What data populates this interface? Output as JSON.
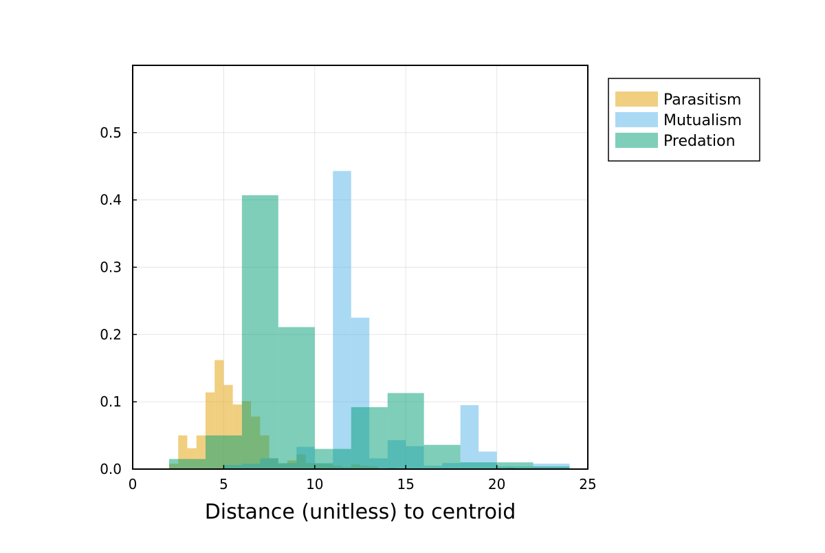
{
  "chart_data": {
    "type": "bar",
    "title": "",
    "xlabel": "Distance (unitless) to centroid",
    "ylabel": "",
    "xlim": [
      0,
      25
    ],
    "ylim": [
      0,
      0.6
    ],
    "xticks": [
      0,
      5,
      10,
      15,
      20,
      25
    ],
    "yticks": [
      0.0,
      0.1,
      0.2,
      0.3,
      0.4,
      0.5
    ],
    "xtick_labels": [
      "0",
      "5",
      "10",
      "15",
      "20",
      "25"
    ],
    "ytick_labels": [
      "0.0",
      "0.1",
      "0.2",
      "0.3",
      "0.4",
      "0.5"
    ],
    "grid": true,
    "legend_position": "outside-top-right",
    "series": [
      {
        "name": "Parasitism",
        "color": "#e6a817",
        "opacity": 0.55,
        "bins": [
          {
            "x0": 1.5,
            "x1": 2.0,
            "y": 0.001
          },
          {
            "x0": 2.0,
            "x1": 2.5,
            "y": 0.008
          },
          {
            "x0": 2.5,
            "x1": 3.0,
            "y": 0.05
          },
          {
            "x0": 3.0,
            "x1": 3.5,
            "y": 0.031
          },
          {
            "x0": 3.5,
            "x1": 4.0,
            "y": 0.05
          },
          {
            "x0": 4.0,
            "x1": 4.5,
            "y": 0.114
          },
          {
            "x0": 4.5,
            "x1": 5.0,
            "y": 0.162
          },
          {
            "x0": 5.0,
            "x1": 5.5,
            "y": 0.125
          },
          {
            "x0": 5.5,
            "x1": 6.0,
            "y": 0.096
          },
          {
            "x0": 6.0,
            "x1": 6.5,
            "y": 0.101
          },
          {
            "x0": 6.5,
            "x1": 7.0,
            "y": 0.078
          },
          {
            "x0": 7.0,
            "x1": 7.5,
            "y": 0.05
          },
          {
            "x0": 7.5,
            "x1": 8.0,
            "y": 0.016
          },
          {
            "x0": 8.0,
            "x1": 8.5,
            "y": 0.008
          },
          {
            "x0": 8.5,
            "x1": 9.0,
            "y": 0.013
          },
          {
            "x0": 9.0,
            "x1": 9.5,
            "y": 0.022
          },
          {
            "x0": 9.5,
            "x1": 10.0,
            "y": 0.009
          },
          {
            "x0": 10.0,
            "x1": 10.5,
            "y": 0.008
          },
          {
            "x0": 10.5,
            "x1": 11.0,
            "y": 0.008
          },
          {
            "x0": 11.0,
            "x1": 11.5,
            "y": 0.005
          },
          {
            "x0": 11.5,
            "x1": 12.0,
            "y": 0.003
          },
          {
            "x0": 12.0,
            "x1": 12.5,
            "y": 0.007
          },
          {
            "x0": 12.5,
            "x1": 13.0,
            "y": 0.005
          },
          {
            "x0": 13.0,
            "x1": 13.5,
            "y": 0.004
          },
          {
            "x0": 14.0,
            "x1": 14.5,
            "y": 0.002
          },
          {
            "x0": 20.5,
            "x1": 21.0,
            "y": 0.002
          }
        ]
      },
      {
        "name": "Mutualism",
        "color": "#56b4e9",
        "opacity": 0.5,
        "bins": [
          {
            "x0": 5.0,
            "x1": 6.0,
            "y": 0.006
          },
          {
            "x0": 6.0,
            "x1": 7.0,
            "y": 0.008
          },
          {
            "x0": 7.0,
            "x1": 8.0,
            "y": 0.016
          },
          {
            "x0": 8.0,
            "x1": 9.0,
            "y": 0.009
          },
          {
            "x0": 9.0,
            "x1": 10.0,
            "y": 0.033
          },
          {
            "x0": 10.0,
            "x1": 11.0,
            "y": 0.009
          },
          {
            "x0": 11.0,
            "x1": 12.0,
            "y": 0.443
          },
          {
            "x0": 12.0,
            "x1": 13.0,
            "y": 0.225
          },
          {
            "x0": 13.0,
            "x1": 14.0,
            "y": 0.016
          },
          {
            "x0": 14.0,
            "x1": 15.0,
            "y": 0.043
          },
          {
            "x0": 15.0,
            "x1": 16.0,
            "y": 0.034
          },
          {
            "x0": 16.0,
            "x1": 17.0,
            "y": 0.005
          },
          {
            "x0": 17.0,
            "x1": 18.0,
            "y": 0.009
          },
          {
            "x0": 18.0,
            "x1": 19.0,
            "y": 0.095
          },
          {
            "x0": 19.0,
            "x1": 20.0,
            "y": 0.026
          },
          {
            "x0": 20.0,
            "x1": 21.0,
            "y": 0.004
          },
          {
            "x0": 21.0,
            "x1": 22.0,
            "y": 0.004
          },
          {
            "x0": 22.0,
            "x1": 23.0,
            "y": 0.008
          },
          {
            "x0": 23.0,
            "x1": 24.0,
            "y": 0.008
          }
        ]
      },
      {
        "name": "Predation",
        "color": "#009e73",
        "opacity": 0.5,
        "bins": [
          {
            "x0": 2.0,
            "x1": 4.0,
            "y": 0.015
          },
          {
            "x0": 4.0,
            "x1": 6.0,
            "y": 0.05
          },
          {
            "x0": 6.0,
            "x1": 8.0,
            "y": 0.407
          },
          {
            "x0": 8.0,
            "x1": 10.0,
            "y": 0.211
          },
          {
            "x0": 10.0,
            "x1": 12.0,
            "y": 0.03
          },
          {
            "x0": 12.0,
            "x1": 14.0,
            "y": 0.092
          },
          {
            "x0": 14.0,
            "x1": 16.0,
            "y": 0.113
          },
          {
            "x0": 16.0,
            "x1": 18.0,
            "y": 0.036
          },
          {
            "x0": 18.0,
            "x1": 20.0,
            "y": 0.01
          },
          {
            "x0": 20.0,
            "x1": 22.0,
            "y": 0.01
          },
          {
            "x0": 22.0,
            "x1": 24.0,
            "y": 0.004
          }
        ]
      }
    ]
  }
}
